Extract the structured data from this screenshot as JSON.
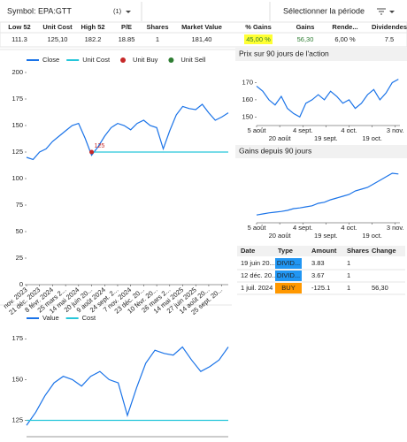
{
  "header": {
    "symbol": "Symbol: EPA:GTT",
    "count": "(1)",
    "period": "Sélectionner la période"
  },
  "stats": {
    "columns": [
      "Low 52",
      "Unit Cost",
      "High 52",
      "P/E",
      "Shares",
      "Market Value",
      "% Gains",
      "Gains",
      "Rende...",
      "Dividendes"
    ],
    "values": [
      "111.3",
      "125,10",
      "182.2",
      "18.85",
      "1",
      "181,40",
      "45,00 %",
      "56,30",
      "6,00 %",
      "7.5"
    ]
  },
  "chart_data": [
    {
      "type": "line",
      "categories": [
        "nov. 2023",
        null,
        "21 déc. 2023",
        null,
        "8 févr. 2024",
        null,
        "25 mars 2...",
        null,
        "14 mai 2024",
        null,
        "20 juin 20...",
        null,
        "9 août 2024",
        null,
        "24 sept. 2...",
        null,
        "7 nov. 2024",
        null,
        "23 déc. 20...",
        null,
        "10 févr. 20...",
        null,
        "26 mars 2...",
        null,
        "14 mai 2025",
        null,
        "27 juin 2025",
        null,
        "14 août 20...",
        null,
        "25 sept. 20...",
        null
      ],
      "series": [
        {
          "name": "Close",
          "color": "#1a73e8",
          "values": [
            120,
            118,
            125,
            128,
            135,
            140,
            145,
            150,
            152,
            138,
            122,
            130,
            140,
            148,
            152,
            150,
            146,
            152,
            155,
            150,
            148,
            128,
            145,
            160,
            168,
            166,
            165,
            170,
            162,
            155,
            158,
            162
          ]
        },
        {
          "name": "Unit Cost",
          "color": "#26c6da",
          "values": [
            null,
            null,
            null,
            null,
            null,
            null,
            null,
            null,
            null,
            null,
            125,
            125,
            125,
            125,
            125,
            125,
            125,
            125,
            125,
            125,
            125,
            125,
            125,
            125,
            125,
            125,
            125,
            125,
            125,
            125,
            125,
            125
          ]
        },
        {
          "name": "Unit Buy",
          "color": "#c62828",
          "marker": true,
          "values": [
            null,
            null,
            null,
            null,
            null,
            null,
            null,
            null,
            null,
            null,
            125,
            null,
            null,
            null,
            null,
            null,
            null,
            null,
            null,
            null,
            null,
            null,
            null,
            null,
            null,
            null,
            null,
            null,
            null,
            null,
            null,
            null
          ]
        },
        {
          "name": "Unit Sell",
          "color": "#2e7d32",
          "marker": true,
          "values": [
            null,
            null,
            null,
            null,
            null,
            null,
            null,
            null,
            null,
            null,
            null,
            null,
            null,
            null,
            null,
            null,
            null,
            null,
            null,
            null,
            null,
            null,
            null,
            null,
            null,
            null,
            null,
            null,
            null,
            null,
            null,
            null
          ]
        }
      ],
      "ylim": [
        0,
        200
      ],
      "yticks": [
        0,
        25,
        50,
        75,
        100,
        125,
        150,
        175,
        200
      ]
    },
    {
      "type": "line",
      "series": [
        {
          "name": "Value",
          "color": "#1a73e8",
          "values": [
            122,
            130,
            140,
            148,
            152,
            150,
            146,
            152,
            155,
            150,
            148,
            128,
            145,
            160,
            168,
            166,
            165,
            170,
            162,
            155,
            158,
            162,
            170
          ]
        },
        {
          "name": "Cost",
          "color": "#26c6da",
          "values": [
            125,
            125,
            125,
            125,
            125,
            125,
            125,
            125,
            125,
            125,
            125,
            125,
            125,
            125,
            125,
            125,
            125,
            125,
            125,
            125,
            125,
            125,
            125
          ]
        }
      ],
      "ylim": [
        115,
        180
      ],
      "yticks": [
        125,
        150,
        175
      ]
    },
    {
      "type": "line",
      "title": "Prix sur 90 jours de l'action",
      "x": [
        0,
        4,
        8,
        12,
        16,
        20,
        24,
        28,
        32,
        36,
        40,
        44,
        48,
        52,
        56,
        60,
        64,
        68,
        72,
        76,
        80,
        84,
        88,
        92
      ],
      "series": [
        {
          "color": "#1a73e8",
          "values": [
            168,
            165,
            160,
            157,
            162,
            155,
            152,
            150,
            158,
            160,
            163,
            160,
            165,
            162,
            158,
            160,
            155,
            158,
            163,
            166,
            160,
            164,
            170,
            172
          ]
        }
      ],
      "xlim": [
        0,
        93
      ],
      "xticks": [
        {
          "value": 0,
          "label": "5 août"
        },
        {
          "value": 15,
          "label": "20 août"
        },
        {
          "value": 30,
          "label": "4 sept."
        },
        {
          "value": 45,
          "label": "19 sept."
        },
        {
          "value": 60,
          "label": "4 oct."
        },
        {
          "value": 75,
          "label": "19 oct."
        },
        {
          "value": 90,
          "label": "3 nov."
        }
      ],
      "ylim": [
        145,
        178
      ],
      "yticks": [
        150,
        160,
        170
      ]
    },
    {
      "type": "line",
      "title": "Gains depuis 90 jours",
      "x": [
        0,
        4,
        8,
        12,
        16,
        20,
        24,
        28,
        32,
        36,
        40,
        44,
        48,
        52,
        56,
        60,
        64,
        68,
        72,
        76,
        80,
        84,
        88,
        92
      ],
      "series": [
        {
          "color": "#1a73e8",
          "values": [
            42,
            45,
            48,
            50,
            52,
            55,
            60,
            62,
            65,
            68,
            75,
            78,
            85,
            90,
            95,
            100,
            110,
            115,
            120,
            130,
            140,
            150,
            160,
            158
          ]
        }
      ],
      "xlim": [
        0,
        93
      ],
      "xticks": [
        {
          "value": 0,
          "label": "5 août"
        },
        {
          "value": 15,
          "label": "20 août"
        },
        {
          "value": 30,
          "label": "4 sept."
        },
        {
          "value": 45,
          "label": "19 sept."
        },
        {
          "value": 60,
          "label": "4 oct."
        },
        {
          "value": 75,
          "label": "19 oct."
        },
        {
          "value": 90,
          "label": "3 nov."
        }
      ],
      "ylim": [
        20,
        180
      ]
    }
  ],
  "transactions": {
    "columns": [
      "Date",
      "Type",
      "Amount",
      "Shares",
      "Change"
    ],
    "rows": [
      [
        "19 juin 20...",
        "DIVID...",
        "3.83",
        "1"
      ],
      [
        "12 déc. 20...",
        "DIVID...",
        "3.67",
        "1"
      ],
      [
        "1 juil. 2024",
        "BUY",
        "-125.1",
        "1",
        "56,30"
      ]
    ]
  }
}
